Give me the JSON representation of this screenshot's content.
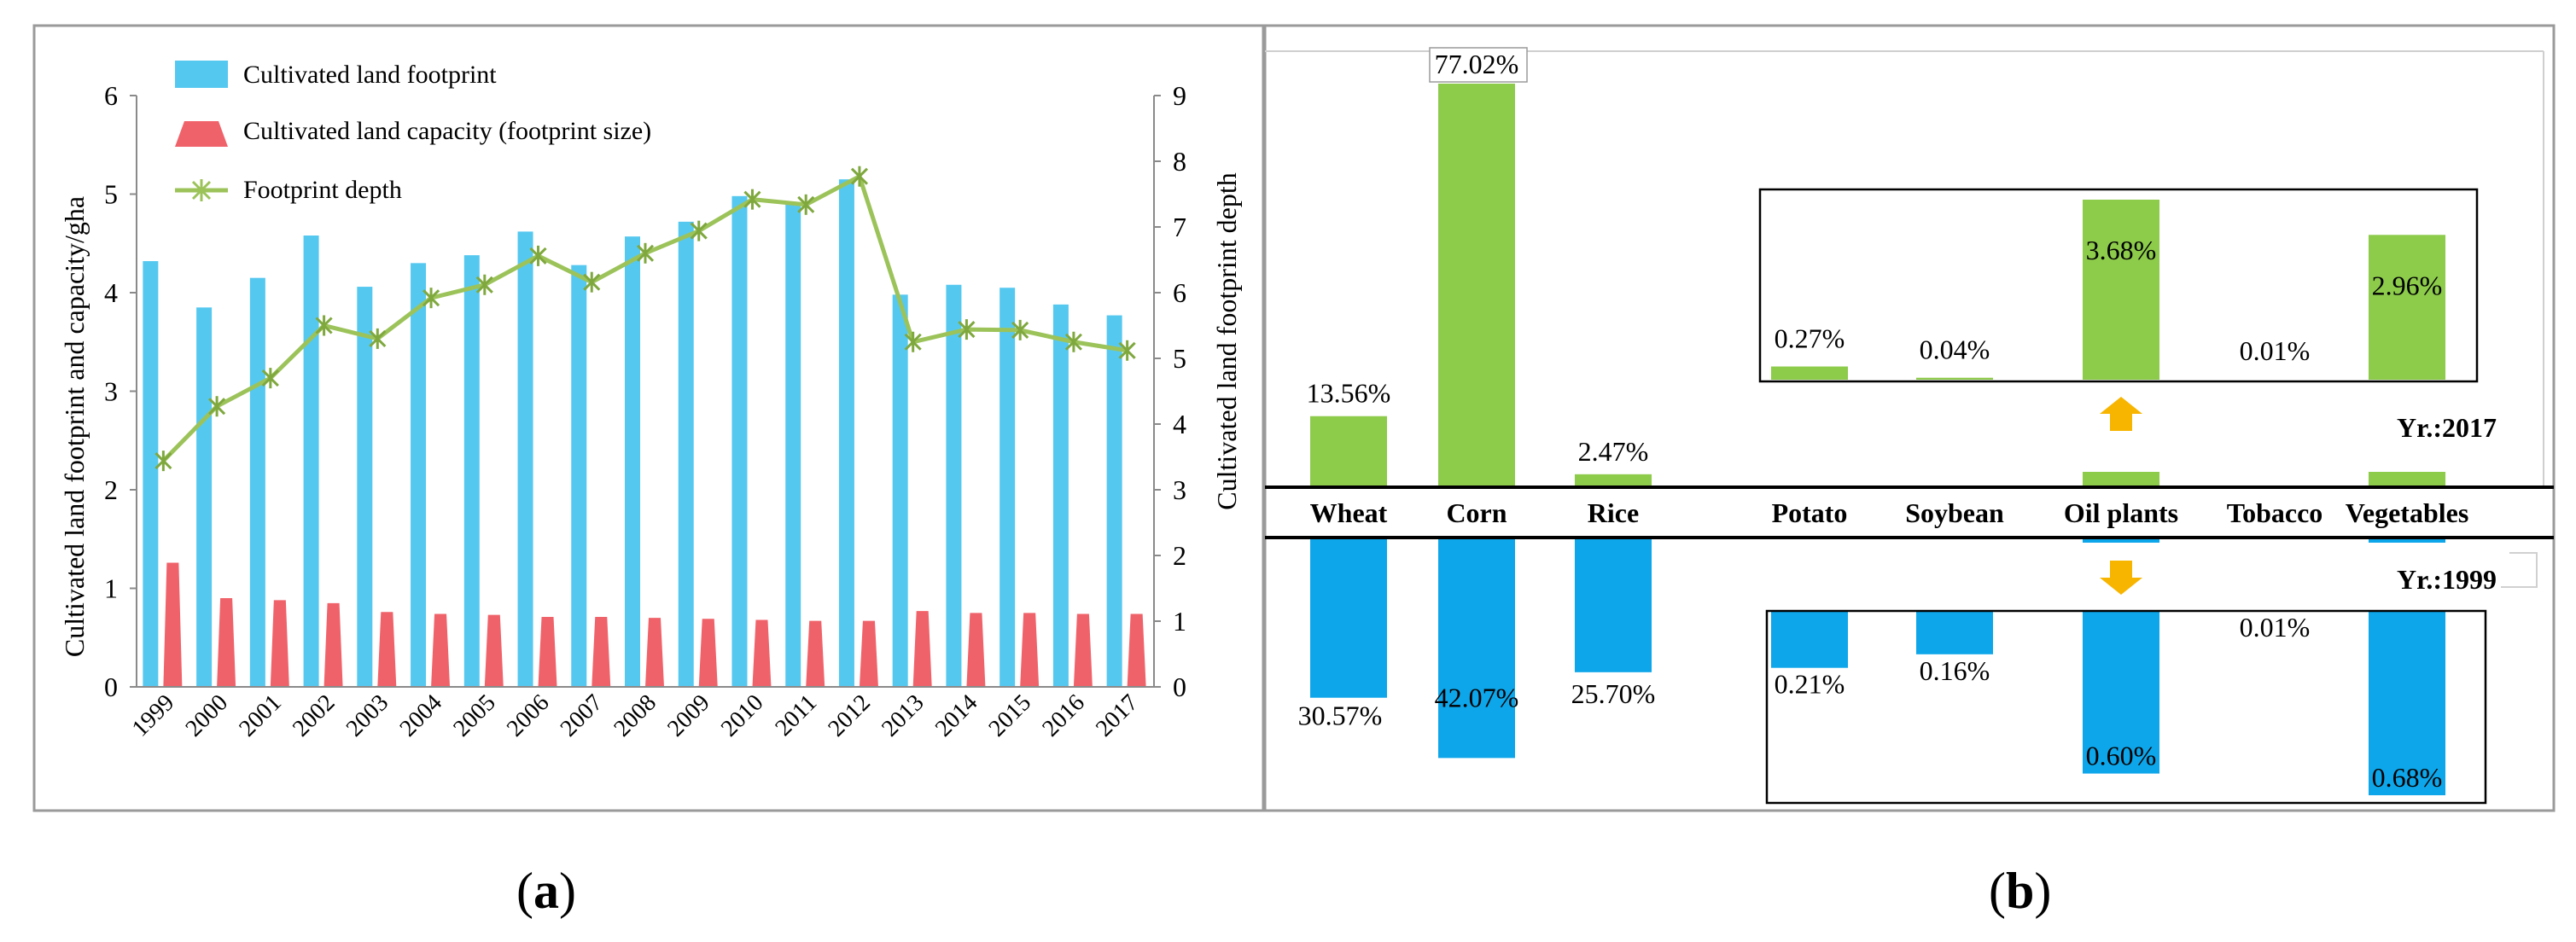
{
  "chart_data": [
    {
      "panel": "a",
      "type": "bar",
      "years": [
        "1999",
        "2000",
        "2001",
        "2002",
        "2003",
        "2004",
        "2005",
        "2006",
        "2007",
        "2008",
        "2009",
        "2010",
        "2011",
        "2012",
        "2013",
        "2014",
        "2015",
        "2016",
        "2017"
      ],
      "series": [
        {
          "name": "Cultivated land footprint",
          "type": "bar",
          "axis": "left",
          "color": "#55C8F0",
          "values": [
            4.32,
            3.85,
            4.15,
            4.58,
            4.06,
            4.3,
            4.38,
            4.62,
            4.28,
            4.57,
            4.72,
            4.98,
            4.9,
            5.15,
            3.98,
            4.08,
            4.05,
            3.88,
            3.77
          ]
        },
        {
          "name": "Cultivated land capacity (footprint size)",
          "type": "bar",
          "axis": "left",
          "color": "#F0626A",
          "values": [
            1.26,
            0.9,
            0.88,
            0.85,
            0.76,
            0.74,
            0.73,
            0.71,
            0.71,
            0.7,
            0.69,
            0.68,
            0.67,
            0.67,
            0.77,
            0.75,
            0.75,
            0.74,
            0.74
          ]
        },
        {
          "name": "Footprint depth",
          "type": "line",
          "axis": "right",
          "color": "#9CC35A",
          "values": [
            3.44,
            4.27,
            4.7,
            5.5,
            5.3,
            5.92,
            6.12,
            6.56,
            6.16,
            6.6,
            6.94,
            7.42,
            7.34,
            7.77,
            5.25,
            5.44,
            5.43,
            5.25,
            5.12
          ]
        }
      ],
      "ylabel_left": "Cultivated land footprint and capacity/gha",
      "ylabel_right": "Cultivated land footprint depth",
      "ylim_left": [
        0,
        6
      ],
      "yticks_left": [
        "0",
        "1",
        "2",
        "3",
        "4",
        "5",
        "6"
      ],
      "ylim_right": [
        0,
        9
      ],
      "yticks_right": [
        "0",
        "1",
        "2",
        "3",
        "4",
        "5",
        "6",
        "7",
        "8",
        "9"
      ],
      "legend": "top-left"
    },
    {
      "panel": "b",
      "type": "bar",
      "categories": [
        "Wheat",
        "Corn",
        "Rice",
        "Potato",
        "Soybean",
        "Oil plants",
        "Tobacco",
        "Vegetables"
      ],
      "series": [
        {
          "name": "Yr.:2017",
          "color": "#8DCB4B",
          "direction": "up",
          "values": [
            13.56,
            77.02,
            2.47,
            0.27,
            0.04,
            3.68,
            0.01,
            2.96
          ],
          "labels": [
            "13.56%",
            "77.02%",
            "2.47%",
            "0.27%",
            "0.04%",
            "3.68%",
            "0.01%",
            "2.96%"
          ]
        },
        {
          "name": "Yr.:1999",
          "color": "#0EA6EA",
          "direction": "down",
          "values": [
            30.57,
            42.07,
            25.7,
            0.21,
            0.16,
            0.6,
            0.01,
            0.68
          ],
          "labels": [
            "30.57%",
            "42.07%",
            "25.70%",
            "0.21%",
            "0.16%",
            "0.60%",
            "0.01%",
            "0.68%"
          ]
        }
      ],
      "main_scale_categories": [
        "Wheat",
        "Corn",
        "Rice"
      ],
      "inset_scale_categories": [
        "Potato",
        "Soybean",
        "Oil plants",
        "Tobacco",
        "Vegetables"
      ],
      "inset_ymax_up": 3.68,
      "inset_ymax_down": 0.68,
      "main_ymax": 77.02
    }
  ],
  "captions": {
    "a": "a",
    "b": "b"
  }
}
